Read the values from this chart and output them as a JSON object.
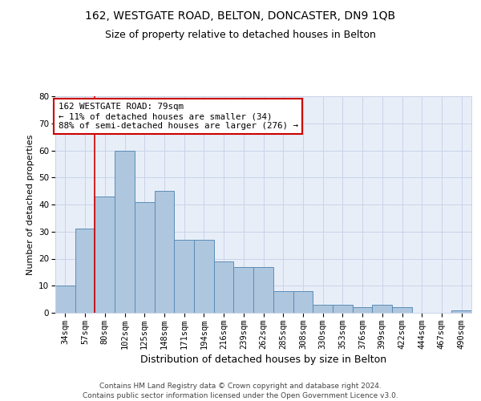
{
  "title1": "162, WESTGATE ROAD, BELTON, DONCASTER, DN9 1QB",
  "title2": "Size of property relative to detached houses in Belton",
  "xlabel": "Distribution of detached houses by size in Belton",
  "ylabel": "Number of detached properties",
  "bar_values": [
    10,
    31,
    43,
    60,
    41,
    45,
    27,
    27,
    19,
    17,
    17,
    8,
    8,
    3,
    3,
    2,
    3,
    2,
    0,
    0,
    1
  ],
  "bar_labels": [
    "34sqm",
    "57sqm",
    "80sqm",
    "102sqm",
    "125sqm",
    "148sqm",
    "171sqm",
    "194sqm",
    "216sqm",
    "239sqm",
    "262sqm",
    "285sqm",
    "308sqm",
    "330sqm",
    "353sqm",
    "376sqm",
    "399sqm",
    "422sqm",
    "444sqm",
    "467sqm",
    "490sqm"
  ],
  "bar_color": "#aec6de",
  "bar_edge_color": "#5b8db8",
  "background_color": "#e8eef8",
  "red_line_x": 1.5,
  "annotation_text": "162 WESTGATE ROAD: 79sqm\n← 11% of detached houses are smaller (34)\n88% of semi-detached houses are larger (276) →",
  "annotation_box_color": "white",
  "annotation_box_edge_color": "#cc0000",
  "footer": "Contains HM Land Registry data © Crown copyright and database right 2024.\nContains public sector information licensed under the Open Government Licence v3.0.",
  "ylim": [
    0,
    80
  ],
  "yticks": [
    0,
    10,
    20,
    30,
    40,
    50,
    60,
    70,
    80
  ],
  "grid_color": "#c8d4e8",
  "title1_fontsize": 10,
  "title2_fontsize": 9,
  "xlabel_fontsize": 9,
  "ylabel_fontsize": 8,
  "tick_fontsize": 7.5,
  "footer_fontsize": 6.5
}
